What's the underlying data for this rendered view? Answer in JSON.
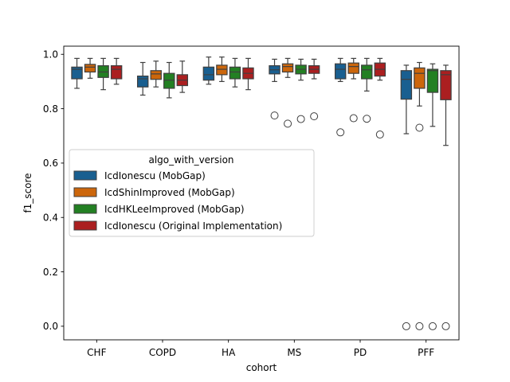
{
  "chart_data": {
    "type": "box",
    "xlabel": "cohort",
    "ylabel": "f1_score",
    "ylim": [
      -0.05,
      1.03
    ],
    "yticks": [
      0.0,
      0.2,
      0.4,
      0.6,
      0.8,
      1.0
    ],
    "ytick_labels": [
      "0.0",
      "0.2",
      "0.4",
      "0.6",
      "0.8",
      "1.0"
    ],
    "categories": [
      "CHF",
      "COPD",
      "HA",
      "MS",
      "PD",
      "PFF"
    ],
    "legend": {
      "title": "algo_with_version",
      "placement": "center-left"
    },
    "series": [
      {
        "name": "IcdIonescu (MobGap)",
        "color": "#1f77b4",
        "boxes": [
          {
            "whislo": 0.875,
            "q1": 0.91,
            "med": 0.945,
            "q3": 0.953,
            "whishi": 0.985,
            "fliers": []
          },
          {
            "whislo": 0.85,
            "q1": 0.88,
            "med": 0.91,
            "q3": 0.92,
            "whishi": 0.97,
            "fliers": []
          },
          {
            "whislo": 0.89,
            "q1": 0.905,
            "med": 0.925,
            "q3": 0.953,
            "whishi": 0.99,
            "fliers": []
          },
          {
            "whislo": 0.9,
            "q1": 0.928,
            "med": 0.943,
            "q3": 0.958,
            "whishi": 0.982,
            "fliers": [
              0.775
            ]
          },
          {
            "whislo": 0.9,
            "q1": 0.91,
            "med": 0.945,
            "q3": 0.965,
            "whishi": 0.985,
            "fliers": [
              0.713
            ]
          },
          {
            "whislo": 0.708,
            "q1": 0.835,
            "med": 0.908,
            "q3": 0.94,
            "whishi": 0.96,
            "fliers": [
              0.0
            ]
          }
        ]
      },
      {
        "name": "IcdShinImproved (MobGap)",
        "color": "#ff7f0e",
        "boxes": [
          {
            "whislo": 0.912,
            "q1": 0.935,
            "med": 0.953,
            "q3": 0.963,
            "whishi": 0.985,
            "fliers": []
          },
          {
            "whislo": 0.88,
            "q1": 0.908,
            "med": 0.928,
            "q3": 0.94,
            "whishi": 0.975,
            "fliers": []
          },
          {
            "whislo": 0.9,
            "q1": 0.925,
            "med": 0.945,
            "q3": 0.96,
            "whishi": 0.99,
            "fliers": []
          },
          {
            "whislo": 0.915,
            "q1": 0.935,
            "med": 0.955,
            "q3": 0.965,
            "whishi": 0.985,
            "fliers": [
              0.745
            ]
          },
          {
            "whislo": 0.91,
            "q1": 0.93,
            "med": 0.955,
            "q3": 0.968,
            "whishi": 0.985,
            "fliers": [
              0.765
            ]
          },
          {
            "whislo": 0.81,
            "q1": 0.875,
            "med": 0.93,
            "q3": 0.95,
            "whishi": 0.97,
            "fliers": [
              0.73,
              0.0
            ]
          }
        ]
      },
      {
        "name": "IcdHKLeeImproved (MobGap)",
        "color": "#2ca02c",
        "boxes": [
          {
            "whislo": 0.87,
            "q1": 0.915,
            "med": 0.935,
            "q3": 0.958,
            "whishi": 0.985,
            "fliers": []
          },
          {
            "whislo": 0.84,
            "q1": 0.875,
            "med": 0.905,
            "q3": 0.93,
            "whishi": 0.97,
            "fliers": []
          },
          {
            "whislo": 0.88,
            "q1": 0.91,
            "med": 0.935,
            "q3": 0.953,
            "whishi": 0.985,
            "fliers": []
          },
          {
            "whislo": 0.905,
            "q1": 0.928,
            "med": 0.945,
            "q3": 0.96,
            "whishi": 0.982,
            "fliers": [
              0.762
            ]
          },
          {
            "whislo": 0.865,
            "q1": 0.91,
            "med": 0.943,
            "q3": 0.96,
            "whishi": 0.985,
            "fliers": [
              0.763
            ]
          },
          {
            "whislo": 0.735,
            "q1": 0.86,
            "med": 0.94,
            "q3": 0.945,
            "whishi": 0.965,
            "fliers": [
              0.0
            ]
          }
        ]
      },
      {
        "name": "IcdIonescu (Original Implementation)",
        "color": "#d62728",
        "boxes": [
          {
            "whislo": 0.89,
            "q1": 0.91,
            "med": 0.945,
            "q3": 0.958,
            "whishi": 0.985,
            "fliers": []
          },
          {
            "whislo": 0.86,
            "q1": 0.885,
            "med": 0.905,
            "q3": 0.925,
            "whishi": 0.975,
            "fliers": []
          },
          {
            "whislo": 0.87,
            "q1": 0.91,
            "med": 0.93,
            "q3": 0.95,
            "whishi": 0.985,
            "fliers": []
          },
          {
            "whislo": 0.91,
            "q1": 0.93,
            "med": 0.945,
            "q3": 0.958,
            "whishi": 0.982,
            "fliers": [
              0.772
            ]
          },
          {
            "whislo": 0.905,
            "q1": 0.92,
            "med": 0.945,
            "q3": 0.968,
            "whishi": 0.985,
            "fliers": [
              0.705
            ]
          },
          {
            "whislo": 0.665,
            "q1": 0.833,
            "med": 0.925,
            "q3": 0.94,
            "whishi": 0.96,
            "fliers": [
              0.0
            ]
          }
        ]
      }
    ]
  }
}
